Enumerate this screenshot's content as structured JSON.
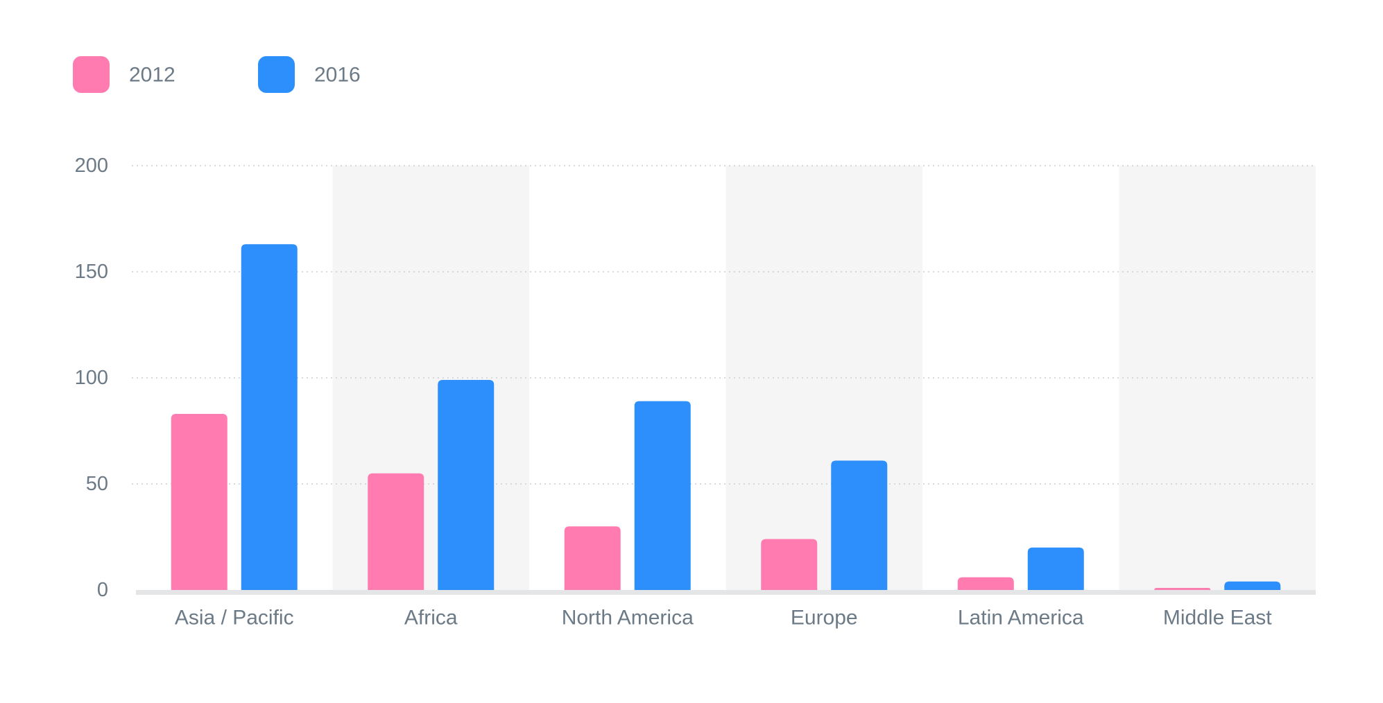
{
  "chart_data": {
    "type": "bar",
    "categories": [
      "Asia / Pacific",
      "Africa",
      "North America",
      "Europe",
      "Latin America",
      "Middle East"
    ],
    "series": [
      {
        "name": "2012",
        "color": "#ff7bb0",
        "values": [
          83,
          55,
          30,
          24,
          6,
          1
        ]
      },
      {
        "name": "2016",
        "color": "#2d8ffb",
        "values": [
          163,
          99,
          89,
          61,
          20,
          4
        ]
      }
    ],
    "title": "",
    "xlabel": "",
    "ylabel": "",
    "ylim": [
      0,
      200
    ],
    "yticks": [
      0,
      50,
      100,
      150,
      200
    ],
    "grid": "horizontal dotted",
    "legend_position": "top-left",
    "alternating_column_shading": true
  }
}
